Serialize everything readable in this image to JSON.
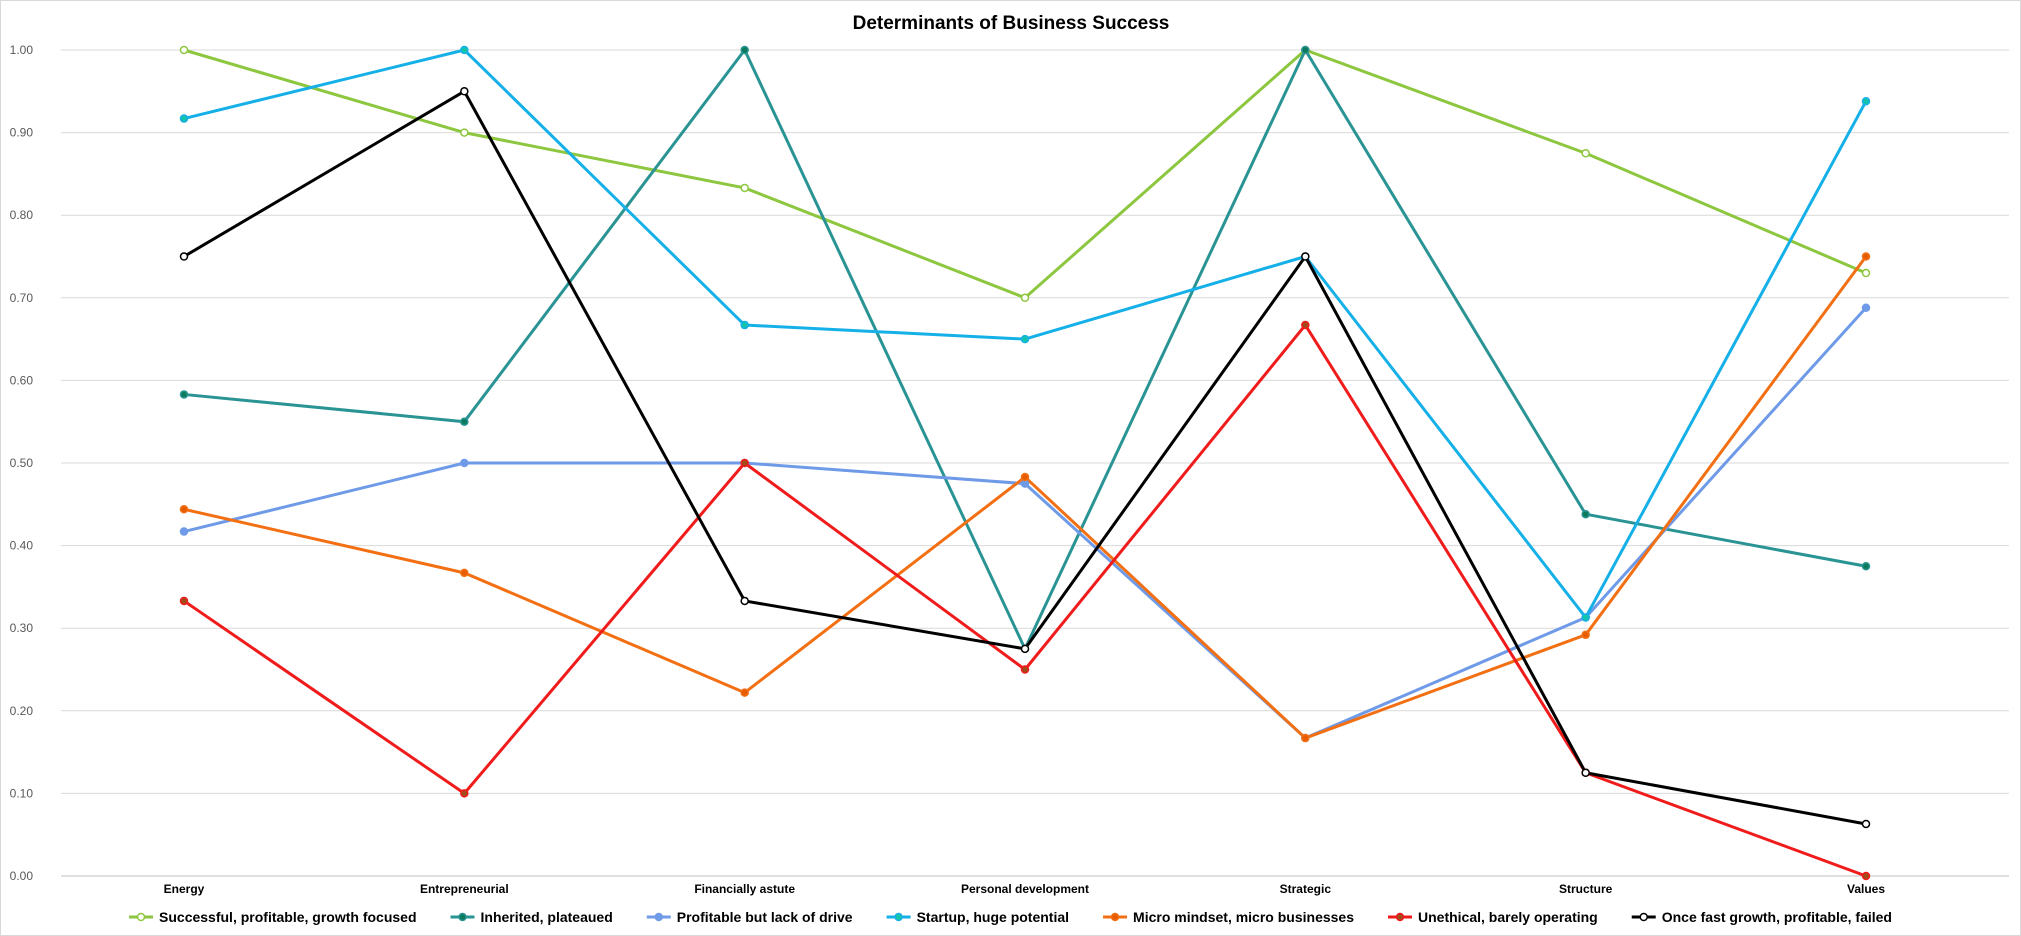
{
  "chart_data": {
    "type": "line",
    "title": "Determinants of Business Success",
    "xlabel": "",
    "ylabel": "",
    "categories": [
      "Energy",
      "Entrepreneurial",
      "Financially astute",
      "Personal development",
      "Strategic",
      "Structure",
      "Values"
    ],
    "ylim": [
      0,
      1
    ],
    "yticks": [
      "0.00",
      "0.10",
      "0.20",
      "0.30",
      "0.40",
      "0.50",
      "0.60",
      "0.70",
      "0.80",
      "0.90",
      "1.00"
    ],
    "grid": "horizontal",
    "legend_position": "bottom",
    "series": [
      {
        "name": "Successful, profitable, growth focused",
        "color": "#8dc63f",
        "marker_fill": "#ffffff",
        "values": [
          1.0,
          0.9,
          0.833,
          0.7,
          1.0,
          0.875,
          0.73
        ]
      },
      {
        "name": "Inherited, plateaued",
        "color": "#2a9393",
        "marker_fill": "#0c7a5c",
        "values": [
          0.583,
          0.55,
          1.0,
          0.275,
          1.0,
          0.438,
          0.375
        ]
      },
      {
        "name": "Profitable but lack of drive",
        "color": "#6f9ae8",
        "marker_fill": "#6f9ae8",
        "values": [
          0.417,
          0.5,
          0.5,
          0.475,
          0.167,
          0.313,
          0.688
        ]
      },
      {
        "name": "Startup, huge potential",
        "color": "#15b0e8",
        "marker_fill": "#14c4a8",
        "values": [
          0.917,
          1.0,
          0.667,
          0.65,
          0.75,
          0.313,
          0.938
        ]
      },
      {
        "name": "Micro mindset, micro businesses",
        "color": "#f27013",
        "marker_fill": "#e65c00",
        "values": [
          0.444,
          0.367,
          0.222,
          0.483,
          0.167,
          0.292,
          0.75
        ]
      },
      {
        "name": "Unethical, barely operating",
        "color": "#f01b1b",
        "marker_fill": "#a14a1a",
        "values": [
          0.333,
          0.1,
          0.5,
          0.25,
          0.667,
          0.125,
          0.0
        ]
      },
      {
        "name": "Once fast growth, profitable, failed",
        "color": "#000000",
        "marker_fill": "#ffffff",
        "values": [
          0.75,
          0.95,
          0.333,
          0.275,
          0.75,
          0.125,
          0.063
        ]
      }
    ]
  }
}
